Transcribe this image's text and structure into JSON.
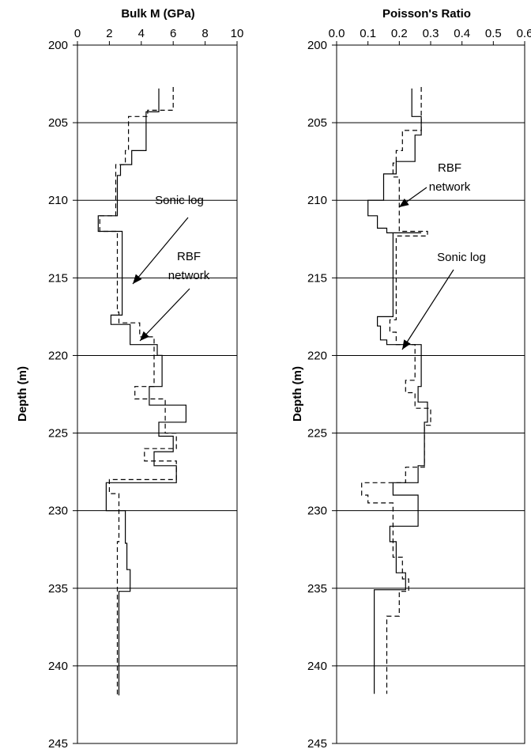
{
  "chart_data": [
    {
      "type": "line",
      "title": "Bulk M (GPa)",
      "ylabel": "Depth (m)",
      "xlabel": "",
      "xlim": [
        0,
        10
      ],
      "ylim": [
        200,
        245
      ],
      "xticks": [
        "0",
        "2",
        "4",
        "6",
        "8",
        "10"
      ],
      "yticks": [
        "200",
        "205",
        "210",
        "215",
        "220",
        "225",
        "230",
        "235",
        "240",
        "245"
      ],
      "grid": "horizontal",
      "y_inverted": true,
      "series": [
        {
          "style": "solid",
          "points": [
            [
              5.1,
              202.8
            ],
            [
              5.1,
              204.3
            ],
            [
              4.3,
              204.3
            ],
            [
              4.3,
              206.8
            ],
            [
              3.4,
              206.8
            ],
            [
              3.4,
              207.7
            ],
            [
              2.7,
              207.7
            ],
            [
              2.7,
              208.4
            ],
            [
              2.5,
              208.4
            ],
            [
              2.5,
              211.0
            ],
            [
              1.3,
              211.0
            ],
            [
              1.3,
              212.0
            ],
            [
              2.8,
              212.0
            ],
            [
              2.8,
              217.4
            ],
            [
              2.1,
              217.4
            ],
            [
              2.1,
              218.0
            ],
            [
              3.3,
              218.0
            ],
            [
              3.3,
              219.3
            ],
            [
              5.0,
              219.3
            ],
            [
              5.0,
              220.0
            ],
            [
              5.3,
              220.0
            ],
            [
              5.3,
              222.0
            ],
            [
              4.5,
              222.0
            ],
            [
              4.5,
              223.2
            ],
            [
              6.8,
              223.2
            ],
            [
              6.8,
              224.3
            ],
            [
              5.1,
              224.3
            ],
            [
              5.1,
              225.2
            ],
            [
              6.0,
              225.2
            ],
            [
              6.0,
              226.2
            ],
            [
              4.8,
              226.2
            ],
            [
              4.8,
              227.1
            ],
            [
              6.2,
              227.1
            ],
            [
              6.2,
              228.2
            ],
            [
              1.8,
              228.2
            ],
            [
              1.8,
              230.0
            ],
            [
              3.0,
              230.0
            ],
            [
              3.0,
              232.1
            ],
            [
              3.1,
              232.1
            ],
            [
              3.1,
              233.8
            ],
            [
              3.3,
              233.8
            ],
            [
              3.3,
              235.2
            ],
            [
              2.6,
              235.2
            ],
            [
              2.6,
              241.9
            ]
          ]
        },
        {
          "style": "dashed",
          "points": [
            [
              6.0,
              202.7
            ],
            [
              6.0,
              204.2
            ],
            [
              4.4,
              204.2
            ],
            [
              4.4,
              204.6
            ],
            [
              3.2,
              204.6
            ],
            [
              3.2,
              206.8
            ],
            [
              3.0,
              206.8
            ],
            [
              3.0,
              207.7
            ],
            [
              2.4,
              207.7
            ],
            [
              2.4,
              211.0
            ],
            [
              1.4,
              211.0
            ],
            [
              1.4,
              212.0
            ],
            [
              2.5,
              212.0
            ],
            [
              2.5,
              217.2
            ],
            [
              2.6,
              217.2
            ],
            [
              2.6,
              217.9
            ],
            [
              3.9,
              217.9
            ],
            [
              3.9,
              218.8
            ],
            [
              4.8,
              218.8
            ],
            [
              4.8,
              222.0
            ],
            [
              3.6,
              222.0
            ],
            [
              3.6,
              222.8
            ],
            [
              5.5,
              222.8
            ],
            [
              5.5,
              225.0
            ],
            [
              6.2,
              225.0
            ],
            [
              6.2,
              226.0
            ],
            [
              4.2,
              226.0
            ],
            [
              4.2,
              226.8
            ],
            [
              6.2,
              226.8
            ],
            [
              6.2,
              228.0
            ],
            [
              2.0,
              228.0
            ],
            [
              2.0,
              228.9
            ],
            [
              2.6,
              228.9
            ],
            [
              2.6,
              232.0
            ],
            [
              2.5,
              232.0
            ],
            [
              2.5,
              241.9
            ]
          ]
        }
      ],
      "annotations": [
        {
          "text": "Sonic log",
          "lines": [
            "Sonic log"
          ]
        },
        {
          "text": "RBF network",
          "lines": [
            "RBF",
            "network"
          ]
        }
      ]
    },
    {
      "type": "line",
      "title": "Poisson's Ratio",
      "ylabel": "Depth (m)",
      "xlabel": "",
      "xlim": [
        0,
        0.6
      ],
      "ylim": [
        200,
        245
      ],
      "xticks": [
        "0.0",
        "0.1",
        "0.2",
        "0.3",
        "0.4",
        "0.5",
        "0.6"
      ],
      "yticks": [
        "200",
        "205",
        "210",
        "215",
        "220",
        "225",
        "230",
        "235",
        "240",
        "245"
      ],
      "grid": "horizontal",
      "y_inverted": true,
      "series": [
        {
          "style": "solid",
          "points": [
            [
              0.24,
              202.8
            ],
            [
              0.24,
              204.6
            ],
            [
              0.27,
              204.6
            ],
            [
              0.27,
              205.8
            ],
            [
              0.25,
              205.8
            ],
            [
              0.25,
              207.5
            ],
            [
              0.19,
              207.5
            ],
            [
              0.19,
              208.3
            ],
            [
              0.15,
              208.3
            ],
            [
              0.15,
              210.0
            ],
            [
              0.1,
              210.0
            ],
            [
              0.1,
              211.0
            ],
            [
              0.13,
              211.0
            ],
            [
              0.13,
              211.8
            ],
            [
              0.16,
              211.8
            ],
            [
              0.16,
              212.1
            ],
            [
              0.27,
              212.1
            ],
            [
              0.27,
              212.1
            ],
            [
              0.18,
              212.1
            ],
            [
              0.18,
              217.5
            ],
            [
              0.13,
              217.5
            ],
            [
              0.13,
              218.1
            ],
            [
              0.14,
              218.1
            ],
            [
              0.14,
              219.0
            ],
            [
              0.16,
              219.0
            ],
            [
              0.16,
              219.3
            ],
            [
              0.27,
              219.3
            ],
            [
              0.27,
              222.0
            ],
            [
              0.26,
              222.0
            ],
            [
              0.26,
              222.7
            ],
            [
              0.26,
              222.7
            ],
            [
              0.26,
              223.0
            ],
            [
              0.29,
              223.0
            ],
            [
              0.29,
              224.3
            ],
            [
              0.28,
              224.3
            ],
            [
              0.28,
              227.1
            ],
            [
              0.26,
              227.1
            ],
            [
              0.26,
              228.2
            ],
            [
              0.18,
              228.2
            ],
            [
              0.18,
              229.0
            ],
            [
              0.26,
              229.0
            ],
            [
              0.26,
              231.0
            ],
            [
              0.17,
              231.0
            ],
            [
              0.17,
              232.0
            ],
            [
              0.19,
              232.0
            ],
            [
              0.19,
              234.0
            ],
            [
              0.22,
              234.0
            ],
            [
              0.22,
              235.1
            ],
            [
              0.12,
              235.1
            ],
            [
              0.12,
              241.8
            ]
          ]
        },
        {
          "style": "dashed",
          "points": [
            [
              0.27,
              202.7
            ],
            [
              0.27,
              205.5
            ],
            [
              0.21,
              205.5
            ],
            [
              0.21,
              206.8
            ],
            [
              0.19,
              206.8
            ],
            [
              0.19,
              207.6
            ],
            [
              0.18,
              207.6
            ],
            [
              0.18,
              208.5
            ],
            [
              0.2,
              208.5
            ],
            [
              0.2,
              212.0
            ],
            [
              0.29,
              212.0
            ],
            [
              0.29,
              212.3
            ],
            [
              0.19,
              212.3
            ],
            [
              0.19,
              217.7
            ],
            [
              0.17,
              217.7
            ],
            [
              0.17,
              218.5
            ],
            [
              0.19,
              218.5
            ],
            [
              0.19,
              219.3
            ],
            [
              0.25,
              219.3
            ],
            [
              0.25,
              221.6
            ],
            [
              0.22,
              221.6
            ],
            [
              0.22,
              222.4
            ],
            [
              0.25,
              222.4
            ],
            [
              0.25,
              223.4
            ],
            [
              0.3,
              223.4
            ],
            [
              0.3,
              224.5
            ],
            [
              0.28,
              224.5
            ],
            [
              0.28,
              227.2
            ],
            [
              0.22,
              227.2
            ],
            [
              0.22,
              228.2
            ],
            [
              0.08,
              228.2
            ],
            [
              0.08,
              229.0
            ],
            [
              0.1,
              229.0
            ],
            [
              0.1,
              229.5
            ],
            [
              0.18,
              229.5
            ],
            [
              0.18,
              233.0
            ],
            [
              0.21,
              233.0
            ],
            [
              0.21,
              234.4
            ],
            [
              0.23,
              234.4
            ],
            [
              0.23,
              235.2
            ],
            [
              0.2,
              235.2
            ],
            [
              0.2,
              236.8
            ],
            [
              0.16,
              236.8
            ],
            [
              0.16,
              241.8
            ]
          ]
        }
      ],
      "annotations": [
        {
          "text": "RBF network",
          "lines": [
            "RBF",
            "network"
          ]
        },
        {
          "text": "Sonic log",
          "lines": [
            "Sonic log"
          ]
        }
      ]
    }
  ]
}
